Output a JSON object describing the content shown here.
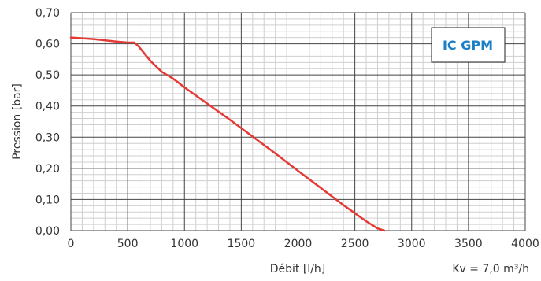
{
  "chart_data": {
    "type": "line",
    "badge": "IC GPM",
    "xlabel": "Débit [l/h]",
    "ylabel": "Pression [bar]",
    "kv_note": "Kv = 7,0 m³/h",
    "xlim": [
      0,
      4000
    ],
    "ylim": [
      0,
      0.7
    ],
    "x_ticks": [
      "0",
      "500",
      "1000",
      "1500",
      "2000",
      "2500",
      "3000",
      "3500",
      "4000"
    ],
    "y_ticks": [
      "0,00",
      "0,10",
      "0,20",
      "0,30",
      "0,40",
      "0,50",
      "0,60",
      "0,70"
    ],
    "grid": true,
    "series": [
      {
        "color": "#e53935",
        "x": [
          0,
          200,
          400,
          500,
          560,
          600,
          700,
          800,
          900,
          1000,
          1200,
          1400,
          1600,
          1800,
          2000,
          2200,
          2400,
          2600,
          2700,
          2760
        ],
        "y": [
          0.62,
          0.615,
          0.607,
          0.604,
          0.604,
          0.59,
          0.545,
          0.51,
          0.488,
          0.46,
          0.408,
          0.356,
          0.302,
          0.248,
          0.192,
          0.137,
          0.082,
          0.03,
          0.007,
          0.0
        ]
      }
    ]
  },
  "colors": {
    "grid_major": "#444444",
    "grid_minor": "#cfcfcf",
    "badge_border": "#222222",
    "badge_text": "#1a7fc4"
  }
}
